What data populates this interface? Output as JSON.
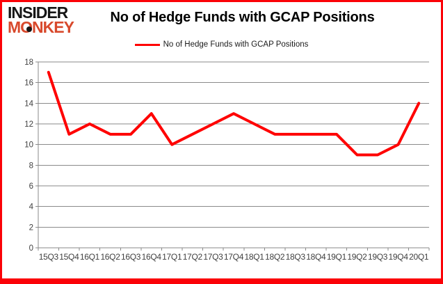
{
  "brand": {
    "line1": "INSIDER",
    "line2": "MONKEY",
    "color_black": "#161616",
    "color_red": "#d8492c"
  },
  "title": "No of Hedge Funds with GCAP Positions",
  "legend": {
    "label": "No of Hedge Funds with GCAP Positions",
    "line_color": "#ff0000"
  },
  "chart_data": {
    "type": "line",
    "title": "No of Hedge Funds with GCAP Positions",
    "categories": [
      "15Q3",
      "15Q4",
      "16Q1",
      "16Q2",
      "16Q3",
      "16Q4",
      "17Q1",
      "17Q2",
      "17Q3",
      "17Q4",
      "18Q1",
      "18Q2",
      "18Q3",
      "18Q4",
      "19Q1",
      "19Q2",
      "19Q3",
      "19Q4",
      "20Q1"
    ],
    "series": [
      {
        "name": "No of Hedge Funds with GCAP Positions",
        "color": "#ff0000",
        "values": [
          17,
          11,
          12,
          11,
          11,
          13,
          10,
          11,
          12,
          13,
          12,
          11,
          11,
          11,
          11,
          9,
          9,
          10,
          14
        ]
      }
    ],
    "xlabel": "",
    "ylabel": "",
    "ylim": [
      0,
      18
    ],
    "yticks": [
      0,
      2,
      4,
      6,
      8,
      10,
      12,
      14,
      16,
      18
    ],
    "grid": "horizontal",
    "legend_position": "top-center",
    "colors": {
      "gridline": "#8a8a8a",
      "axis": "#8a8a8a",
      "tick_label": "#404040",
      "frame_border": "#fb0207"
    }
  }
}
